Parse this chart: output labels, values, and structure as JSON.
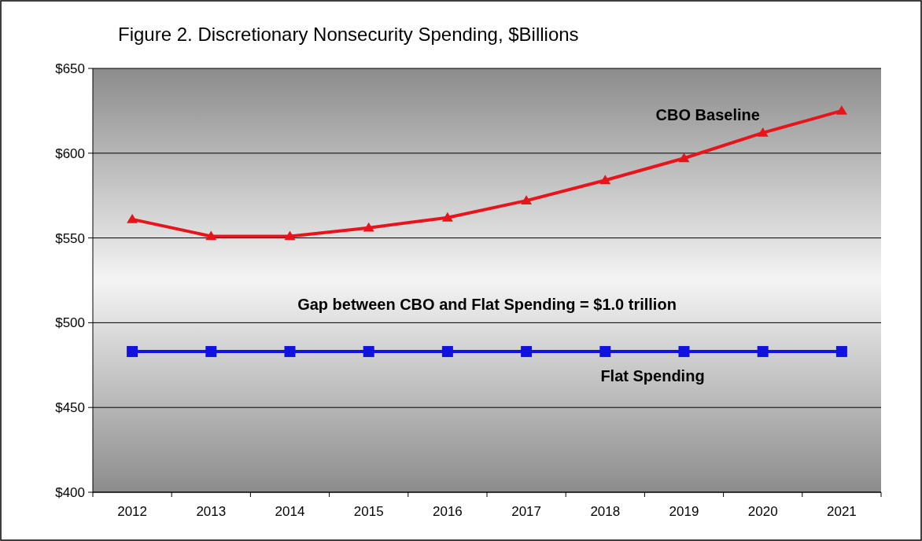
{
  "chart_data": {
    "type": "line",
    "title": "Figure 2. Discretionary Nonsecurity Spending, $Billions",
    "categories": [
      "2012",
      "2013",
      "2014",
      "2015",
      "2016",
      "2017",
      "2018",
      "2019",
      "2020",
      "2021"
    ],
    "series": [
      {
        "name": "CBO Baseline",
        "color": "#e8141c",
        "marker": "triangle",
        "values": [
          561,
          551,
          551,
          556,
          562,
          572,
          584,
          597,
          612,
          625
        ]
      },
      {
        "name": "Flat Spending",
        "color": "#1212e0",
        "marker": "square",
        "values": [
          483,
          483,
          483,
          483,
          483,
          483,
          483,
          483,
          483,
          483
        ]
      }
    ],
    "ylim": [
      400,
      650
    ],
    "yticks": [
      {
        "value": 400,
        "label": "$400"
      },
      {
        "value": 450,
        "label": "$450"
      },
      {
        "value": 500,
        "label": "$500"
      },
      {
        "value": 550,
        "label": "$550"
      },
      {
        "value": 600,
        "label": "$600"
      },
      {
        "value": 650,
        "label": "$650"
      }
    ],
    "grid": "y",
    "line_style": "solid",
    "annotations": [
      "Gap between CBO and Flat Spending = $1.0 trillion"
    ]
  }
}
